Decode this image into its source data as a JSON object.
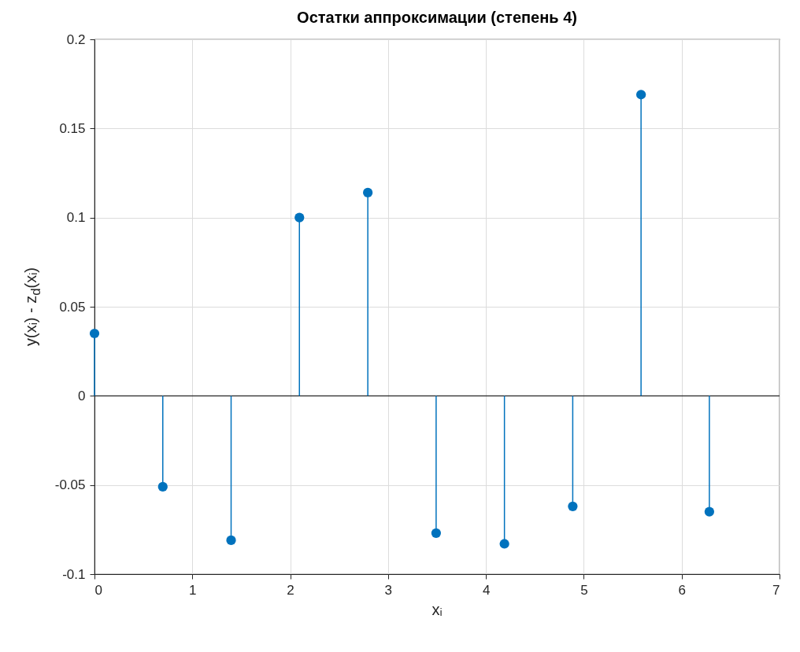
{
  "chart_data": {
    "type": "lollipop",
    "title": "Остатки аппроксимации (степень 4)",
    "xlabel": "xᵢ",
    "ylabel": "y(xᵢ) - z$_{d}$(xᵢ)",
    "x": [
      0,
      0.698,
      1.396,
      2.094,
      2.793,
      3.491,
      4.189,
      4.887,
      5.585,
      6.283
    ],
    "series": [
      {
        "color": "#0072bd",
        "values": [
          0.035,
          -0.051,
          -0.081,
          0.1,
          0.114,
          -0.077,
          -0.083,
          -0.062,
          0.169,
          -0.065
        ]
      }
    ],
    "xlim": [
      0,
      7
    ],
    "xticks": [
      0,
      1,
      2,
      3,
      4,
      5,
      6,
      7
    ],
    "ylim": [
      -0.1,
      0.2
    ],
    "yticks": [
      -0.1,
      -0.05,
      0,
      0.05,
      0.1,
      0.15,
      0.2
    ],
    "grid": true,
    "marker": "circle",
    "line_style": "solid"
  }
}
